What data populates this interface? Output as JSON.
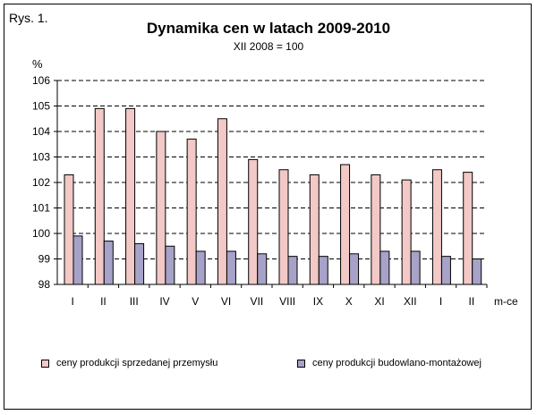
{
  "figure_label": "Rys. 1.",
  "chart_data": {
    "type": "bar",
    "title": "Dynamika cen w latach 2009-2010",
    "subtitle": "XII 2008 = 100",
    "ylabel": "%",
    "xlabel": "m-ce",
    "ylim": [
      98,
      106
    ],
    "yticks": [
      98,
      99,
      100,
      101,
      102,
      103,
      104,
      105,
      106
    ],
    "grid": "horizontal dashed",
    "legend_position": "bottom",
    "categories": [
      "I",
      "II",
      "III",
      "IV",
      "V",
      "VI",
      "VII",
      "VIII",
      "IX",
      "X",
      "XI",
      "XII",
      "I",
      "II"
    ],
    "series": [
      {
        "name": "ceny produkcji sprzedanej przemysłu",
        "color": "#f2c9c6",
        "values": [
          102.3,
          104.9,
          104.9,
          104.0,
          103.7,
          104.5,
          102.9,
          102.5,
          102.3,
          102.7,
          102.3,
          102.1,
          102.5,
          102.4
        ]
      },
      {
        "name": "ceny produkcji budowlano-montażowej",
        "color": "#a6a2c8",
        "values": [
          99.9,
          99.7,
          99.6,
          99.5,
          99.3,
          99.3,
          99.2,
          99.1,
          99.1,
          99.2,
          99.3,
          99.3,
          99.1,
          99.0
        ]
      }
    ]
  }
}
